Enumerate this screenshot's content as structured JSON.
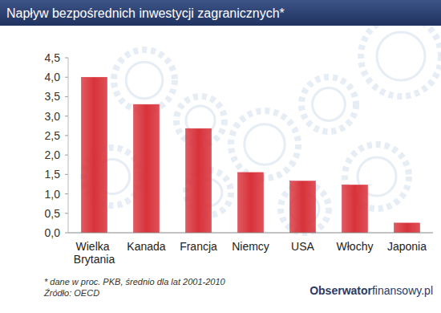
{
  "chart_data": {
    "type": "bar",
    "title": "Napływ bezpośrednich inwestycji zagranicznych*",
    "categories": [
      "Wielka Brytania",
      "Kanada",
      "Francja",
      "Niemcy",
      "USA",
      "Włochy",
      "Japonia"
    ],
    "values": [
      4.0,
      3.3,
      2.68,
      1.55,
      1.33,
      1.23,
      0.25
    ],
    "color": "#d8323a",
    "ylim": [
      0,
      4.5
    ],
    "yticks": [
      {
        "value": 0,
        "label": "0,0"
      },
      {
        "value": 0.5,
        "label": "0,5"
      },
      {
        "value": 1,
        "label": "1,0"
      },
      {
        "value": 1.5,
        "label": "1,5"
      },
      {
        "value": 2,
        "label": "2,0"
      },
      {
        "value": 2.5,
        "label": "2,5"
      },
      {
        "value": 3,
        "label": "3,0"
      },
      {
        "value": 3.5,
        "label": "3,5"
      },
      {
        "value": 4,
        "label": "4,0"
      },
      {
        "value": 4.5,
        "label": "4,5"
      }
    ],
    "grid": false,
    "note": "* dane w proc. PKB, średnio dla lat 2001-2010",
    "source": "Źródło: OECD",
    "brand": [
      "Obserwator",
      "finansowy.pl"
    ]
  }
}
